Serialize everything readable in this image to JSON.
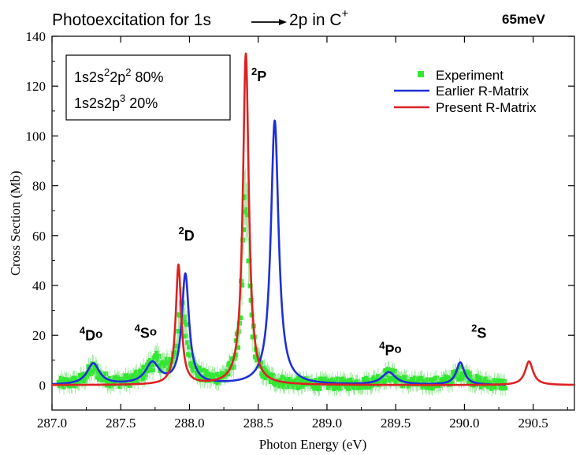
{
  "chart_data": {
    "type": "line",
    "title_parts": {
      "lead": "Photoexcitation for 1s",
      "target": "2p  in C",
      "charge": "+"
    },
    "resolution_label": "65meV",
    "xlabel": "Photon Energy (eV)",
    "ylabel": "Cross Section (Mb)",
    "xlim": [
      287.0,
      290.8
    ],
    "ylim": [
      -10,
      140
    ],
    "x_ticks": [
      "287.0",
      "287.5",
      "288.0",
      "288.5",
      "289.0",
      "289.5",
      "290.0",
      "290.5"
    ],
    "y_ticks": [
      "0",
      "20",
      "40",
      "60",
      "80",
      "100",
      "120",
      "140"
    ],
    "grid": false,
    "legend_position": "top-right",
    "configuration_box": {
      "line1": {
        "base": "1s2s",
        "sup1": "2",
        "mid": "2p",
        "sup2": "2",
        "tail": " 80%"
      },
      "line2": {
        "base": "1s2s2p",
        "sup": "3",
        "tail": "  20%"
      }
    },
    "annotations": [
      {
        "id": "D2",
        "sup": "2",
        "letter": "D",
        "extra": "",
        "x": 287.92,
        "y": 58
      },
      {
        "id": "P2",
        "sup": "2",
        "letter": "P",
        "extra": "",
        "x": 288.45,
        "y": 122
      },
      {
        "id": "D4",
        "sup": "4",
        "letter": "D",
        "extra": "o",
        "x": 287.2,
        "y": 18
      },
      {
        "id": "S4",
        "sup": "4",
        "letter": "S",
        "extra": "o",
        "x": 287.6,
        "y": 19
      },
      {
        "id": "P4",
        "sup": "4",
        "letter": "P",
        "extra": "o",
        "x": 289.38,
        "y": 12
      },
      {
        "id": "S2",
        "sup": "2",
        "letter": "S",
        "extra": "",
        "x": 290.05,
        "y": 19
      }
    ],
    "series": [
      {
        "name": "Experiment",
        "style": "markers",
        "color": "#33e633",
        "peaks": [
          {
            "x0": 287.3,
            "amp": 6,
            "gamma": 0.06
          },
          {
            "x0": 287.75,
            "amp": 8,
            "gamma": 0.08
          },
          {
            "x0": 287.95,
            "amp": 28,
            "gamma": 0.045
          },
          {
            "x0": 288.41,
            "amp": 70,
            "gamma": 0.035
          },
          {
            "x0": 289.45,
            "amp": 4,
            "gamma": 0.08
          },
          {
            "x0": 289.98,
            "amp": 5,
            "gamma": 0.07
          }
        ],
        "x_range": [
          287.05,
          290.3
        ]
      },
      {
        "name": "Earlier R-Matrix",
        "style": "line",
        "color": "#1f2fd6",
        "peaks": [
          {
            "x0": 287.3,
            "amp": 8.5,
            "gamma": 0.055
          },
          {
            "x0": 287.73,
            "amp": 8.5,
            "gamma": 0.06
          },
          {
            "x0": 287.97,
            "amp": 44,
            "gamma": 0.032
          },
          {
            "x0": 288.62,
            "amp": 106,
            "gamma": 0.034
          },
          {
            "x0": 289.45,
            "amp": 5,
            "gamma": 0.06
          },
          {
            "x0": 289.97,
            "amp": 9,
            "gamma": 0.035
          }
        ],
        "x_range": [
          287.0,
          290.3
        ]
      },
      {
        "name": "Present R-Matrix",
        "style": "line",
        "color": "#dd2222",
        "peaks": [
          {
            "x0": 287.92,
            "amp": 48,
            "gamma": 0.024
          },
          {
            "x0": 288.41,
            "amp": 133,
            "gamma": 0.026
          },
          {
            "x0": 290.47,
            "amp": 9.5,
            "gamma": 0.035
          }
        ],
        "x_range": [
          287.0,
          290.8
        ]
      }
    ]
  }
}
